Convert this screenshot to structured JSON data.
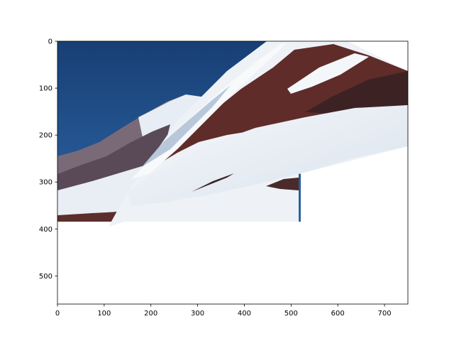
{
  "chart_data": {
    "type": "image",
    "title": "",
    "xlabel": "",
    "ylabel": "",
    "xlim": [
      0,
      750
    ],
    "ylim": [
      560,
      0
    ],
    "y_inverted": true,
    "grid": false,
    "xticks": [
      0,
      100,
      200,
      300,
      400,
      500,
      600,
      700
    ],
    "yticks": [
      0,
      100,
      200,
      300,
      400,
      500
    ],
    "image_content": "stitched panorama of a snowy mountain ridge with blue sky",
    "stitched_regions": [
      {
        "name": "base-image",
        "corners": [
          [
            0,
            0
          ],
          [
            520,
            0
          ],
          [
            520,
            385
          ],
          [
            0,
            385
          ]
        ]
      },
      {
        "name": "warped-image",
        "corners": [
          [
            110,
            395
          ],
          [
            490,
            0
          ],
          [
            750,
            65
          ],
          [
            750,
            220
          ],
          [
            420,
            285
          ],
          [
            420,
            385
          ],
          [
            160,
            385
          ]
        ]
      }
    ],
    "colors": {
      "sky": "#1e4f8a",
      "snow": "#eef2f6",
      "rock_dark": "#4a2a2a",
      "rock_red": "#6b2c2a",
      "shadow_blue": "#b8c8da"
    }
  }
}
